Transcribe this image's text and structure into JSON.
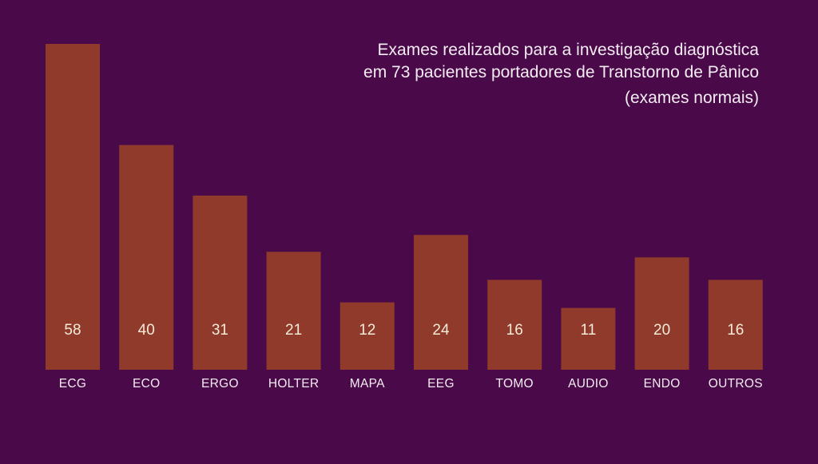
{
  "colors": {
    "background": "#4a0a4a",
    "bar": "#8f3a2a",
    "text": "#f4ecf2"
  },
  "chart_data": {
    "type": "bar",
    "title_lines": [
      "Exames realizados para a investigação diagnóstica",
      "em 73 pacientes portadores de Transtorno de Pânico",
      "(exames normais)"
    ],
    "categories": [
      "ECG",
      "ECO",
      "ERGO",
      "HOLTER",
      "MAPA",
      "EEG",
      "TOMO",
      "AUDIO",
      "ENDO",
      "OUTROS"
    ],
    "values": [
      58,
      40,
      31,
      21,
      12,
      24,
      16,
      11,
      20,
      16
    ],
    "data_labels": true,
    "grid": false,
    "axes_visible": false,
    "legend": "none"
  }
}
